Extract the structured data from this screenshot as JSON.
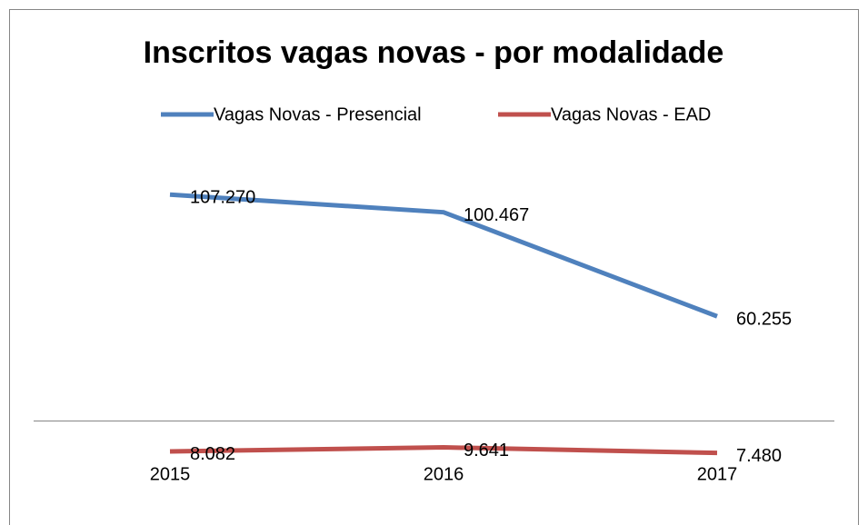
{
  "chart_data": {
    "type": "line",
    "title": "Inscritos vagas novas - por modalidade",
    "categories": [
      "2015",
      "2016",
      "2017"
    ],
    "series": [
      {
        "name": "Vagas Novas - Presencial",
        "color": "#4f81bd",
        "values": [
          107270,
          100467,
          60255
        ],
        "value_labels": [
          "107.270",
          "100.467",
          "60.255"
        ]
      },
      {
        "name": "Vagas Novas - EAD",
        "color": "#c0504d",
        "values": [
          8082,
          9641,
          7480
        ],
        "value_labels": [
          "8.082",
          "9.641",
          "7.480"
        ]
      }
    ],
    "ylim": [
      0,
      120000
    ],
    "grid": false,
    "legend": "top"
  }
}
